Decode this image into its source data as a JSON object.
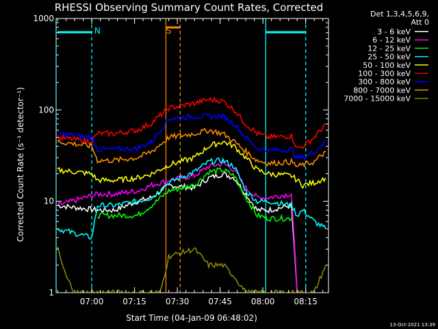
{
  "chart_data": {
    "type": "line",
    "title": "RHESSI Observing Summary Count Rates, Corrected",
    "xlabel": "Start Time (04-Jan-09 06:48:02)",
    "ylabel": "Corrected Count Rate (s⁻¹ detector⁻¹)",
    "yscale": "log",
    "ylim": [
      1,
      1000
    ],
    "xlim_minutes": [
      -0.5,
      95
    ],
    "x_ticks": [
      {
        "label": "07:00",
        "t": 12
      },
      {
        "label": "07:15",
        "t": 27
      },
      {
        "label": "07:30",
        "t": 42
      },
      {
        "label": "07:45",
        "t": 57
      },
      {
        "label": "08:00",
        "t": 72
      },
      {
        "label": "08:15",
        "t": 87
      }
    ],
    "y_ticks": [
      {
        "label": "1",
        "value": 1
      },
      {
        "label": "10",
        "value": 10
      },
      {
        "label": "100",
        "value": 100
      },
      {
        "label": "1000",
        "value": 1000
      }
    ],
    "legend_header": [
      "Det 1,3,4,5,6,9,",
      "Att 0"
    ],
    "legend_position": "right",
    "series": [
      {
        "name": "3 - 6 keV",
        "color": "#ffffff",
        "points": [
          [
            0,
            9
          ],
          [
            14,
            8
          ],
          [
            20,
            8
          ],
          [
            28,
            10
          ],
          [
            33,
            11
          ],
          [
            39,
            15
          ],
          [
            48,
            14
          ],
          [
            53,
            18
          ],
          [
            58,
            20
          ],
          [
            62,
            18
          ],
          [
            66,
            12
          ],
          [
            70,
            8
          ],
          [
            74,
            8
          ],
          [
            82,
            9
          ],
          [
            84,
            1
          ]
        ]
      },
      {
        "name": "6 - 12 keV",
        "color": "#ff00ff",
        "points": [
          [
            0,
            9
          ],
          [
            14,
            12
          ],
          [
            20,
            12
          ],
          [
            28,
            13
          ],
          [
            33,
            15
          ],
          [
            39,
            17
          ],
          [
            48,
            19
          ],
          [
            53,
            24
          ],
          [
            58,
            26
          ],
          [
            62,
            22
          ],
          [
            66,
            14
          ],
          [
            70,
            11
          ],
          [
            74,
            11
          ],
          [
            82,
            12
          ],
          [
            84,
            1
          ]
        ]
      },
      {
        "name": "12 - 25 keV",
        "color": "#00ff00",
        "points": [
          [
            14,
            7
          ],
          [
            20,
            7
          ],
          [
            28,
            7
          ],
          [
            33,
            9
          ],
          [
            39,
            13
          ],
          [
            48,
            15
          ],
          [
            53,
            21
          ],
          [
            58,
            22
          ],
          [
            62,
            19
          ],
          [
            66,
            11
          ],
          [
            70,
            7
          ],
          [
            74,
            6.5
          ],
          [
            82,
            6.5
          ]
        ]
      },
      {
        "name": "25 - 50 keV",
        "color": "#00ffff",
        "points": [
          [
            0,
            5
          ],
          [
            12,
            4
          ],
          [
            14,
            9
          ],
          [
            20,
            9
          ],
          [
            28,
            10
          ],
          [
            33,
            11
          ],
          [
            39,
            16
          ],
          [
            48,
            21
          ],
          [
            53,
            27
          ],
          [
            58,
            28
          ],
          [
            62,
            24
          ],
          [
            66,
            13
          ],
          [
            70,
            10
          ],
          [
            74,
            10
          ],
          [
            82,
            9
          ],
          [
            84,
            7
          ],
          [
            86,
            8
          ],
          [
            90,
            6
          ],
          [
            94,
            5
          ]
        ]
      },
      {
        "name": "50 - 100 keV",
        "color": "#ffff00",
        "points": [
          [
            0,
            22
          ],
          [
            12,
            20
          ],
          [
            14,
            17
          ],
          [
            20,
            17
          ],
          [
            28,
            18
          ],
          [
            33,
            20
          ],
          [
            39,
            25
          ],
          [
            48,
            30
          ],
          [
            53,
            40
          ],
          [
            58,
            45
          ],
          [
            62,
            40
          ],
          [
            66,
            30
          ],
          [
            70,
            22
          ],
          [
            74,
            20
          ],
          [
            82,
            19
          ],
          [
            84,
            17
          ],
          [
            86,
            15
          ],
          [
            90,
            16
          ],
          [
            94,
            18
          ]
        ]
      },
      {
        "name": "100 - 300 keV",
        "color": "#ff0000",
        "points": [
          [
            0,
            50
          ],
          [
            12,
            45
          ],
          [
            14,
            55
          ],
          [
            20,
            55
          ],
          [
            28,
            60
          ],
          [
            33,
            72
          ],
          [
            39,
            105
          ],
          [
            48,
            118
          ],
          [
            53,
            130
          ],
          [
            58,
            125
          ],
          [
            62,
            100
          ],
          [
            66,
            70
          ],
          [
            70,
            55
          ],
          [
            74,
            50
          ],
          [
            82,
            52
          ],
          [
            84,
            38
          ],
          [
            86,
            40
          ],
          [
            90,
            50
          ],
          [
            94,
            70
          ]
        ]
      },
      {
        "name": "300 - 800 keV",
        "color": "#0000ff",
        "points": [
          [
            0,
            55
          ],
          [
            12,
            50
          ],
          [
            14,
            37
          ],
          [
            20,
            37
          ],
          [
            28,
            38
          ],
          [
            33,
            45
          ],
          [
            39,
            80
          ],
          [
            48,
            85
          ],
          [
            53,
            85
          ],
          [
            58,
            85
          ],
          [
            62,
            70
          ],
          [
            66,
            50
          ],
          [
            70,
            38
          ],
          [
            74,
            36
          ],
          [
            82,
            37
          ],
          [
            84,
            30
          ],
          [
            86,
            30
          ],
          [
            90,
            35
          ],
          [
            94,
            45
          ]
        ]
      },
      {
        "name": "800 - 7000 keV",
        "color": "#ff8c00",
        "points": [
          [
            0,
            45
          ],
          [
            12,
            40
          ],
          [
            14,
            28
          ],
          [
            20,
            28
          ],
          [
            28,
            30
          ],
          [
            33,
            35
          ],
          [
            39,
            50
          ],
          [
            48,
            55
          ],
          [
            53,
            60
          ],
          [
            58,
            55
          ],
          [
            62,
            45
          ],
          [
            66,
            35
          ],
          [
            70,
            28
          ],
          [
            74,
            26
          ],
          [
            82,
            27
          ],
          [
            84,
            24
          ],
          [
            86,
            25
          ],
          [
            90,
            27
          ],
          [
            94,
            35
          ]
        ]
      },
      {
        "name": "7000 - 15000 keV",
        "color": "#888800",
        "points": [
          [
            0,
            3
          ],
          [
            3,
            1.5
          ],
          [
            6,
            1
          ],
          [
            12,
            1
          ],
          [
            14,
            1
          ],
          [
            20,
            1
          ],
          [
            28,
            1
          ],
          [
            33,
            1
          ],
          [
            36,
            1
          ],
          [
            39,
            2.5
          ],
          [
            48,
            3
          ],
          [
            53,
            2
          ],
          [
            58,
            2
          ],
          [
            62,
            1.5
          ],
          [
            66,
            1
          ],
          [
            70,
            1
          ],
          [
            74,
            1
          ],
          [
            82,
            1
          ],
          [
            84,
            1
          ],
          [
            86,
            1
          ],
          [
            90,
            1
          ],
          [
            94,
            2
          ]
        ]
      }
    ],
    "annotations": [
      {
        "text": "N",
        "color": "#00ffff",
        "t": 14
      },
      {
        "text": "S",
        "color": "#ff8c00",
        "t": 39
      }
    ],
    "footer": "13-Oct-2021 13:39"
  }
}
